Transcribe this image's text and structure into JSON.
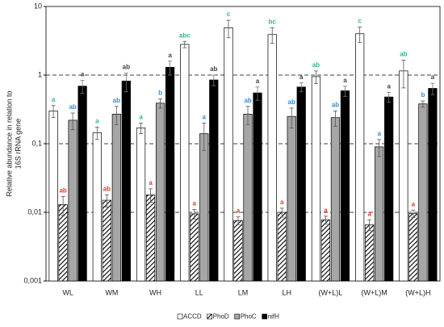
{
  "chart_data": {
    "type": "bar",
    "ylabel": [
      "Relative abundance in relation to",
      "16S rRNA gene"
    ],
    "categories": [
      "WL",
      "WM",
      "WH",
      "LL",
      "LM",
      "LH",
      "(W+L)L",
      "(W+L)M",
      "(W+L)H"
    ],
    "log_scale": true,
    "grid": "dashed",
    "legend": "bottom",
    "ylim": [
      0.001,
      10
    ],
    "yticks": [
      {
        "value": 0.001,
        "label": "0,001"
      },
      {
        "value": 0.01,
        "label": "0,01"
      },
      {
        "value": 0.1,
        "label": "0,1"
      },
      1,
      10
    ],
    "series": [
      {
        "name": "ACCD",
        "color": "#ffffff",
        "label_color": "#2fb58a",
        "values": [
          0.3,
          0.145,
          0.17,
          2.8,
          4.9,
          3.9,
          0.95,
          4.0,
          1.15
        ],
        "errors": [
          0.06,
          0.03,
          0.03,
          0.3,
          1.4,
          1.0,
          0.2,
          1.0,
          0.5
        ],
        "labels": [
          "a",
          "a",
          "a",
          "abc",
          "c",
          "bc",
          "ab",
          "c",
          "ab"
        ]
      },
      {
        "name": "PhoD",
        "color": "#000000",
        "hatch": true,
        "label_color": "#e8352a",
        "values": [
          0.013,
          0.015,
          0.018,
          0.0095,
          0.0076,
          0.01,
          0.0078,
          0.0066,
          0.0096
        ],
        "errors": [
          0.004,
          0.003,
          0.004,
          0.0015,
          0.001,
          0.0015,
          0.001,
          0.0012,
          0.0012
        ],
        "labels": [
          "ab",
          "ab",
          "a",
          "a",
          "a",
          "a",
          "a",
          "a",
          "a"
        ]
      },
      {
        "name": "PhoC",
        "color": "#a6a6a6",
        "label_color": "#2e8fd0",
        "values": [
          0.22,
          0.27,
          0.39,
          0.14,
          0.27,
          0.25,
          0.24,
          0.09,
          0.38
        ],
        "errors": [
          0.06,
          0.08,
          0.06,
          0.06,
          0.08,
          0.08,
          0.06,
          0.025,
          0.04
        ],
        "labels": [
          "ab",
          "ab",
          "b",
          "a",
          "ab",
          "ab",
          "ab",
          "a",
          "b"
        ]
      },
      {
        "name": "nifH",
        "color": "#000000",
        "label_color": "#404040",
        "values": [
          0.69,
          0.82,
          1.3,
          0.85,
          0.55,
          0.67,
          0.59,
          0.48,
          0.64
        ],
        "errors": [
          0.15,
          0.25,
          0.3,
          0.15,
          0.12,
          0.1,
          0.1,
          0.08,
          0.12
        ],
        "labels": [
          "a",
          "ab",
          "a",
          "ab",
          "a",
          "a",
          "a",
          "a",
          "a"
        ]
      }
    ]
  }
}
